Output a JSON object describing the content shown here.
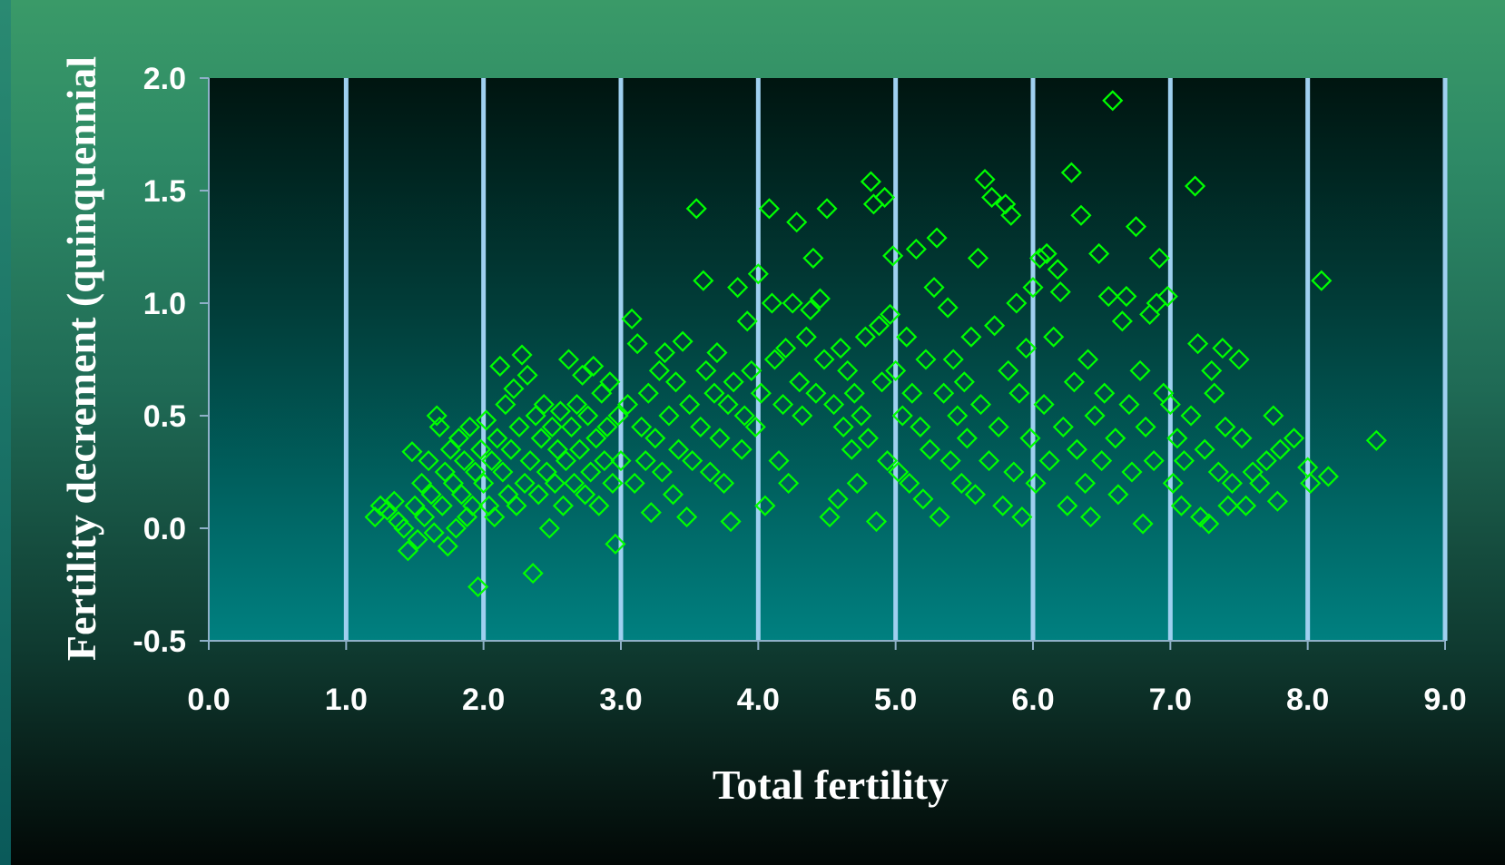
{
  "chart_data": {
    "type": "scatter",
    "title": "",
    "xlabel": "Total fertility",
    "ylabel": "Fertility decrement (quinquennial",
    "xlim": [
      0.0,
      9.0
    ],
    "ylim": [
      -0.5,
      2.0
    ],
    "x_ticks": [
      "0.0",
      "1.0",
      "2.0",
      "3.0",
      "4.0",
      "5.0",
      "6.0",
      "7.0",
      "8.0",
      "9.0"
    ],
    "y_ticks": [
      "2.0",
      "1.5",
      "1.0",
      "0.5",
      "0.0",
      "-0.5"
    ],
    "grid": "vertical",
    "marker": "diamond-open",
    "colors": {
      "marker": "#00ff00",
      "gridline": "#9fd0f0",
      "plot_top": "#001510",
      "plot_bottom": "#008080",
      "text": "#ffffff"
    },
    "series": [
      {
        "points": [
          [
            1.21,
            0.05
          ],
          [
            1.25,
            0.1
          ],
          [
            1.3,
            0.08
          ],
          [
            1.35,
            0.12
          ],
          [
            1.38,
            0.03
          ],
          [
            1.42,
            0.0
          ],
          [
            1.45,
            -0.1
          ],
          [
            1.48,
            0.34
          ],
          [
            1.5,
            0.1
          ],
          [
            1.52,
            -0.05
          ],
          [
            1.55,
            0.2
          ],
          [
            1.57,
            0.05
          ],
          [
            1.6,
            0.3
          ],
          [
            1.62,
            0.15
          ],
          [
            1.64,
            -0.02
          ],
          [
            1.66,
            0.5
          ],
          [
            1.68,
            0.45
          ],
          [
            1.7,
            0.1
          ],
          [
            1.72,
            0.25
          ],
          [
            1.74,
            -0.08
          ],
          [
            1.76,
            0.35
          ],
          [
            1.78,
            0.2
          ],
          [
            1.8,
            0.0
          ],
          [
            1.82,
            0.4
          ],
          [
            1.84,
            0.15
          ],
          [
            1.86,
            0.3
          ],
          [
            1.88,
            0.05
          ],
          [
            1.9,
            0.45
          ],
          [
            1.92,
            0.1
          ],
          [
            1.94,
            0.25
          ],
          [
            1.96,
            -0.26
          ],
          [
            1.98,
            0.35
          ],
          [
            2.0,
            0.2
          ],
          [
            2.02,
            0.48
          ],
          [
            2.04,
            0.1
          ],
          [
            2.06,
            0.3
          ],
          [
            2.08,
            0.05
          ],
          [
            2.1,
            0.4
          ],
          [
            2.12,
            0.72
          ],
          [
            2.14,
            0.25
          ],
          [
            2.16,
            0.55
          ],
          [
            2.18,
            0.15
          ],
          [
            2.2,
            0.35
          ],
          [
            2.22,
            0.62
          ],
          [
            2.24,
            0.1
          ],
          [
            2.26,
            0.45
          ],
          [
            2.28,
            0.77
          ],
          [
            2.3,
            0.2
          ],
          [
            2.32,
            0.68
          ],
          [
            2.34,
            0.3
          ],
          [
            2.36,
            -0.2
          ],
          [
            2.38,
            0.5
          ],
          [
            2.4,
            0.15
          ],
          [
            2.42,
            0.4
          ],
          [
            2.44,
            0.55
          ],
          [
            2.46,
            0.25
          ],
          [
            2.48,
            0.0
          ],
          [
            2.5,
            0.45
          ],
          [
            2.52,
            0.2
          ],
          [
            2.54,
            0.35
          ],
          [
            2.56,
            0.52
          ],
          [
            2.58,
            0.1
          ],
          [
            2.6,
            0.3
          ],
          [
            2.62,
            0.75
          ],
          [
            2.64,
            0.45
          ],
          [
            2.66,
            0.2
          ],
          [
            2.68,
            0.55
          ],
          [
            2.7,
            0.35
          ],
          [
            2.72,
            0.68
          ],
          [
            2.74,
            0.15
          ],
          [
            2.76,
            0.5
          ],
          [
            2.78,
            0.25
          ],
          [
            2.8,
            0.72
          ],
          [
            2.82,
            0.4
          ],
          [
            2.84,
            0.1
          ],
          [
            2.86,
            0.6
          ],
          [
            2.88,
            0.3
          ],
          [
            2.9,
            0.45
          ],
          [
            2.92,
            0.65
          ],
          [
            2.94,
            0.2
          ],
          [
            2.96,
            -0.07
          ],
          [
            2.98,
            0.5
          ],
          [
            3.0,
            0.3
          ],
          [
            3.05,
            0.55
          ],
          [
            3.08,
            0.93
          ],
          [
            3.1,
            0.2
          ],
          [
            3.12,
            0.82
          ],
          [
            3.15,
            0.45
          ],
          [
            3.18,
            0.3
          ],
          [
            3.2,
            0.6
          ],
          [
            3.22,
            0.07
          ],
          [
            3.25,
            0.4
          ],
          [
            3.28,
            0.7
          ],
          [
            3.3,
            0.25
          ],
          [
            3.32,
            0.78
          ],
          [
            3.35,
            0.5
          ],
          [
            3.38,
            0.15
          ],
          [
            3.4,
            0.65
          ],
          [
            3.42,
            0.35
          ],
          [
            3.45,
            0.83
          ],
          [
            3.48,
            0.05
          ],
          [
            3.5,
            0.55
          ],
          [
            3.52,
            0.3
          ],
          [
            3.55,
            1.42
          ],
          [
            3.58,
            0.45
          ],
          [
            3.6,
            1.1
          ],
          [
            3.62,
            0.7
          ],
          [
            3.65,
            0.25
          ],
          [
            3.68,
            0.6
          ],
          [
            3.7,
            0.78
          ],
          [
            3.72,
            0.4
          ],
          [
            3.75,
            0.2
          ],
          [
            3.78,
            0.55
          ],
          [
            3.8,
            0.03
          ],
          [
            3.82,
            0.65
          ],
          [
            3.85,
            1.07
          ],
          [
            3.88,
            0.35
          ],
          [
            3.9,
            0.5
          ],
          [
            3.92,
            0.92
          ],
          [
            3.95,
            0.7
          ],
          [
            3.98,
            0.45
          ],
          [
            4.0,
            1.13
          ],
          [
            4.02,
            0.6
          ],
          [
            4.05,
            0.1
          ],
          [
            4.08,
            1.42
          ],
          [
            4.1,
            1.0
          ],
          [
            4.12,
            0.75
          ],
          [
            4.15,
            0.3
          ],
          [
            4.18,
            0.55
          ],
          [
            4.2,
            0.8
          ],
          [
            4.22,
            0.2
          ],
          [
            4.25,
            1.0
          ],
          [
            4.28,
            1.36
          ],
          [
            4.3,
            0.65
          ],
          [
            4.32,
            0.5
          ],
          [
            4.35,
            0.85
          ],
          [
            4.38,
            0.97
          ],
          [
            4.4,
            1.2
          ],
          [
            4.42,
            0.6
          ],
          [
            4.45,
            1.02
          ],
          [
            4.48,
            0.75
          ],
          [
            4.5,
            1.42
          ],
          [
            4.52,
            0.05
          ],
          [
            4.55,
            0.55
          ],
          [
            4.58,
            0.13
          ],
          [
            4.6,
            0.8
          ],
          [
            4.62,
            0.45
          ],
          [
            4.65,
            0.7
          ],
          [
            4.68,
            0.35
          ],
          [
            4.7,
            0.6
          ],
          [
            4.72,
            0.2
          ],
          [
            4.75,
            0.5
          ],
          [
            4.78,
            0.85
          ],
          [
            4.8,
            0.4
          ],
          [
            4.82,
            1.54
          ],
          [
            4.84,
            1.44
          ],
          [
            4.86,
            0.03
          ],
          [
            4.88,
            0.9
          ],
          [
            4.9,
            0.65
          ],
          [
            4.92,
            1.47
          ],
          [
            4.94,
            0.3
          ],
          [
            4.96,
            0.95
          ],
          [
            4.98,
            1.21
          ],
          [
            5.0,
            0.7
          ],
          [
            5.02,
            0.25
          ],
          [
            5.05,
            0.5
          ],
          [
            5.08,
            0.85
          ],
          [
            5.1,
            0.2
          ],
          [
            5.12,
            0.6
          ],
          [
            5.15,
            1.24
          ],
          [
            5.18,
            0.45
          ],
          [
            5.2,
            0.13
          ],
          [
            5.22,
            0.75
          ],
          [
            5.25,
            0.35
          ],
          [
            5.28,
            1.07
          ],
          [
            5.3,
            1.29
          ],
          [
            5.32,
            0.05
          ],
          [
            5.35,
            0.6
          ],
          [
            5.38,
            0.98
          ],
          [
            5.4,
            0.3
          ],
          [
            5.42,
            0.75
          ],
          [
            5.45,
            0.5
          ],
          [
            5.48,
            0.2
          ],
          [
            5.5,
            0.65
          ],
          [
            5.52,
            0.4
          ],
          [
            5.55,
            0.85
          ],
          [
            5.58,
            0.15
          ],
          [
            5.6,
            1.2
          ],
          [
            5.62,
            0.55
          ],
          [
            5.65,
            1.55
          ],
          [
            5.68,
            0.3
          ],
          [
            5.7,
            1.47
          ],
          [
            5.72,
            0.9
          ],
          [
            5.75,
            0.45
          ],
          [
            5.78,
            0.1
          ],
          [
            5.8,
            1.44
          ],
          [
            5.82,
            0.7
          ],
          [
            5.84,
            1.39
          ],
          [
            5.86,
            0.25
          ],
          [
            5.88,
            1.0
          ],
          [
            5.9,
            0.6
          ],
          [
            5.92,
            0.05
          ],
          [
            5.95,
            0.8
          ],
          [
            5.98,
            0.4
          ],
          [
            6.0,
            1.07
          ],
          [
            6.02,
            0.2
          ],
          [
            6.05,
            1.2
          ],
          [
            6.08,
            0.55
          ],
          [
            6.1,
            1.22
          ],
          [
            6.12,
            0.3
          ],
          [
            6.15,
            0.85
          ],
          [
            6.18,
            1.15
          ],
          [
            6.2,
            1.05
          ],
          [
            6.22,
            0.45
          ],
          [
            6.25,
            0.1
          ],
          [
            6.28,
            1.58
          ],
          [
            6.3,
            0.65
          ],
          [
            6.32,
            0.35
          ],
          [
            6.35,
            1.39
          ],
          [
            6.38,
            0.2
          ],
          [
            6.4,
            0.75
          ],
          [
            6.42,
            0.05
          ],
          [
            6.45,
            0.5
          ],
          [
            6.48,
            1.22
          ],
          [
            6.5,
            0.3
          ],
          [
            6.52,
            0.6
          ],
          [
            6.55,
            1.03
          ],
          [
            6.58,
            1.9
          ],
          [
            6.6,
            0.4
          ],
          [
            6.62,
            0.15
          ],
          [
            6.65,
            0.92
          ],
          [
            6.68,
            1.03
          ],
          [
            6.7,
            0.55
          ],
          [
            6.72,
            0.25
          ],
          [
            6.75,
            1.34
          ],
          [
            6.78,
            0.7
          ],
          [
            6.8,
            0.02
          ],
          [
            6.82,
            0.45
          ],
          [
            6.85,
            0.95
          ],
          [
            6.88,
            0.3
          ],
          [
            6.9,
            1.0
          ],
          [
            6.92,
            1.2
          ],
          [
            6.95,
            0.6
          ],
          [
            6.98,
            1.03
          ],
          [
            7.0,
            0.55
          ],
          [
            7.02,
            0.2
          ],
          [
            7.05,
            0.4
          ],
          [
            7.08,
            0.1
          ],
          [
            7.1,
            0.3
          ],
          [
            7.15,
            0.5
          ],
          [
            7.18,
            1.52
          ],
          [
            7.2,
            0.82
          ],
          [
            7.22,
            0.05
          ],
          [
            7.25,
            0.35
          ],
          [
            7.28,
            0.02
          ],
          [
            7.3,
            0.7
          ],
          [
            7.32,
            0.6
          ],
          [
            7.35,
            0.25
          ],
          [
            7.38,
            0.8
          ],
          [
            7.4,
            0.45
          ],
          [
            7.42,
            0.1
          ],
          [
            7.45,
            0.2
          ],
          [
            7.5,
            0.75
          ],
          [
            7.52,
            0.4
          ],
          [
            7.55,
            0.1
          ],
          [
            7.6,
            0.25
          ],
          [
            7.65,
            0.2
          ],
          [
            7.7,
            0.3
          ],
          [
            7.75,
            0.5
          ],
          [
            7.78,
            0.12
          ],
          [
            7.8,
            0.35
          ],
          [
            7.9,
            0.4
          ],
          [
            8.0,
            0.27
          ],
          [
            8.02,
            0.2
          ],
          [
            8.1,
            1.1
          ],
          [
            8.15,
            0.23
          ],
          [
            8.5,
            0.39
          ]
        ]
      }
    ]
  }
}
